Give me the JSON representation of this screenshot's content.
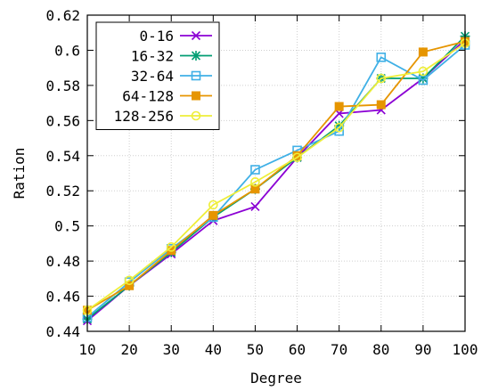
{
  "chart_data": {
    "type": "line",
    "xlabel": "Degree",
    "ylabel": "Ration",
    "xlim": [
      10,
      100
    ],
    "ylim": [
      0.44,
      0.62
    ],
    "x_ticks": [
      "10",
      "20",
      "30",
      "40",
      "50",
      "60",
      "70",
      "80",
      "90",
      "100"
    ],
    "y_ticks": [
      "0.44",
      "0.46",
      "0.48",
      "0.5",
      "0.52",
      "0.54",
      "0.56",
      "0.58",
      "0.6",
      "0.62"
    ],
    "grid": true,
    "legend_position": "top-left",
    "x": [
      10,
      20,
      30,
      40,
      50,
      60,
      70,
      80,
      90,
      100
    ],
    "series": [
      {
        "name": "0-16",
        "color": "#8b00d4",
        "marker": "x",
        "values": [
          0.446,
          0.466,
          0.484,
          0.503,
          0.511,
          0.539,
          0.564,
          0.566,
          0.584,
          0.606
        ]
      },
      {
        "name": "16-32",
        "color": "#009e73",
        "marker": "asterisk",
        "values": [
          0.447,
          0.466,
          0.485,
          0.505,
          0.521,
          0.539,
          0.557,
          0.584,
          0.584,
          0.608
        ]
      },
      {
        "name": "32-64",
        "color": "#3fb0e6",
        "marker": "square-open",
        "values": [
          0.448,
          0.468,
          0.487,
          0.505,
          0.532,
          0.543,
          0.554,
          0.596,
          0.583,
          0.603
        ]
      },
      {
        "name": "64-128",
        "color": "#e69500",
        "marker": "square-filled",
        "values": [
          0.452,
          0.466,
          0.486,
          0.506,
          0.521,
          0.54,
          0.568,
          0.569,
          0.599,
          0.605
        ]
      },
      {
        "name": "128-256",
        "color": "#eeee3a",
        "marker": "circle-open",
        "values": [
          0.452,
          0.469,
          0.488,
          0.512,
          0.525,
          0.539,
          0.556,
          0.584,
          0.588,
          0.604
        ]
      }
    ]
  }
}
